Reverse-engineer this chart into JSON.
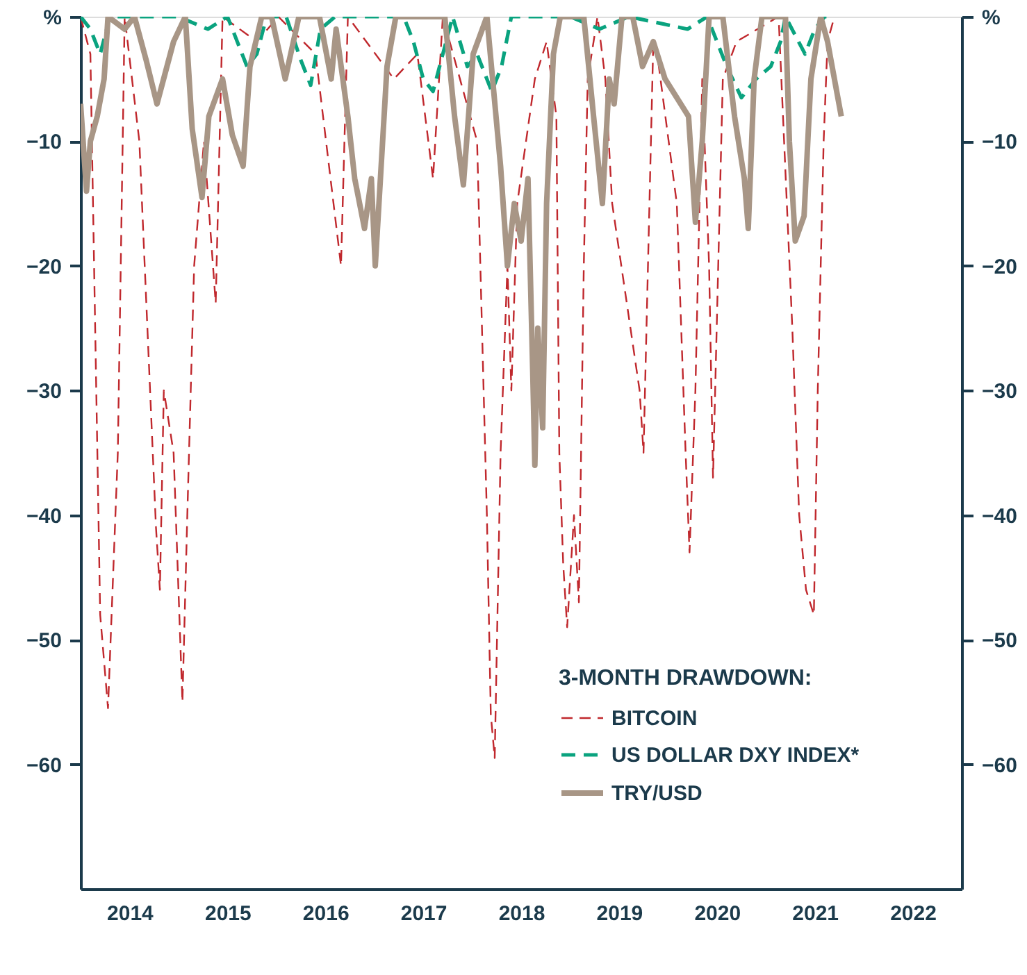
{
  "chart_data": {
    "type": "line",
    "legend_title": "3-MONTH DRAWDOWN:",
    "legend": "bottom right",
    "grid": false,
    "marker": "none",
    "xlim": [
      2014.0,
      2023.0
    ],
    "xticks": [
      {
        "value": 2014.5,
        "label": "2014"
      },
      {
        "value": 2015.5,
        "label": "2015"
      },
      {
        "value": 2016.5,
        "label": "2016"
      },
      {
        "value": 2017.5,
        "label": "2017"
      },
      {
        "value": 2018.5,
        "label": "2018"
      },
      {
        "value": 2019.5,
        "label": "2019"
      },
      {
        "value": 2020.5,
        "label": "2020"
      },
      {
        "value": 2021.5,
        "label": "2021"
      },
      {
        "value": 2022.5,
        "label": "2022"
      }
    ],
    "ylim": [
      -70,
      0
    ],
    "yticks": [
      {
        "value": 0,
        "label": "%"
      },
      -10,
      -20,
      -30,
      -40,
      -50,
      -60
    ],
    "y2lim": [
      -70,
      0
    ],
    "y2ticks": [
      {
        "value": 0,
        "label": "%"
      },
      -10,
      -20,
      -30,
      -40,
      -50,
      -60
    ],
    "series": [
      {
        "name": "BITCOIN",
        "color": "#c0282d",
        "line_style": "dashed",
        "x": [
          2014.0,
          2014.1,
          2014.2,
          2014.28,
          2014.38,
          2014.45,
          2014.6,
          2014.77,
          2014.81,
          2014.85,
          2014.95,
          2015.04,
          2015.09,
          2015.16,
          2015.26,
          2015.38,
          2015.45,
          2015.8,
          2016.02,
          2016.4,
          2016.66,
          2016.73,
          2017.2,
          2017.44,
          2017.6,
          2017.7,
          2018.05,
          2018.15,
          2018.19,
          2018.23,
          2018.29,
          2018.36,
          2018.4,
          2018.46,
          2018.55,
          2018.64,
          2018.76,
          2018.86,
          2018.89,
          2018.93,
          2018.97,
          2019.04,
          2019.09,
          2019.14,
          2019.18,
          2019.28,
          2019.36,
          2019.43,
          2019.71,
          2019.75,
          2019.85,
          2019.89,
          2020.09,
          2020.18,
          2020.22,
          2020.28,
          2020.35,
          2020.42,
          2020.46,
          2020.56,
          2020.7,
          2021.13,
          2021.27,
          2021.34,
          2021.41,
          2021.49,
          2021.53,
          2021.59,
          2021.63,
          2021.7
        ],
        "values": [
          0,
          -3,
          -48,
          -55.5,
          -35,
          0,
          -10,
          -41,
          -46,
          -30,
          -35,
          -55,
          -40,
          -20,
          -10,
          -23,
          0,
          -2,
          0,
          -3,
          -20,
          0,
          -5,
          -3,
          -13,
          0,
          -10,
          -40,
          -56,
          -59.5,
          -35,
          -20,
          -30,
          -15,
          -10,
          -5,
          -2,
          -8,
          -35,
          -44,
          -49,
          -40,
          -47,
          -20,
          -5,
          0,
          -5,
          -15,
          -30,
          -35,
          -2,
          -3,
          -15,
          -35,
          -43,
          -30,
          -5,
          -20,
          -37,
          -5,
          -2,
          0,
          -25,
          -40,
          -46,
          -48,
          -30,
          -10,
          -2,
          0
        ]
      },
      {
        "name": "US DOLLAR DXY INDEX*",
        "color": "#0aa37f",
        "line_style": "dashed",
        "x": [
          2014.0,
          2014.1,
          2014.2,
          2014.3,
          2015.0,
          2015.3,
          2015.5,
          2015.6,
          2015.7,
          2015.8,
          2015.9,
          2016.1,
          2016.25,
          2016.35,
          2016.45,
          2016.6,
          2017.3,
          2017.4,
          2017.5,
          2017.6,
          2017.7,
          2017.8,
          2017.95,
          2018.05,
          2018.2,
          2018.3,
          2018.4,
          2019.0,
          2019.3,
          2019.6,
          2020.2,
          2020.4,
          2020.5,
          2020.6,
          2020.75,
          2020.9,
          2021.05,
          2021.15,
          2021.2,
          2021.4,
          2021.5,
          2021.6,
          2021.7
        ],
        "values": [
          0,
          -1,
          -3,
          0,
          0,
          -1,
          0,
          -2,
          -4,
          -3,
          0,
          0,
          -3.5,
          -5.5,
          -1,
          0,
          0,
          -2,
          -5,
          -6,
          -3,
          0,
          -4,
          -3,
          -6,
          -4,
          0,
          0,
          -1,
          0,
          -1,
          0,
          -2,
          -4,
          -6.5,
          -5,
          -4,
          -2,
          0,
          -3,
          -1,
          0,
          0
        ]
      },
      {
        "name": "TRY/USD",
        "color": "#a89686",
        "line_style": "solid",
        "x": [
          2014.0,
          2014.06,
          2014.1,
          2014.17,
          2014.24,
          2014.28,
          2014.45,
          2014.55,
          2014.67,
          2014.78,
          2014.95,
          2015.07,
          2015.14,
          2015.24,
          2015.31,
          2015.45,
          2015.55,
          2015.66,
          2015.73,
          2015.85,
          2015.95,
          2016.09,
          2016.23,
          2016.44,
          2016.56,
          2016.61,
          2016.73,
          2016.8,
          2016.9,
          2016.97,
          2017.01,
          2017.13,
          2017.22,
          2017.72,
          2017.82,
          2017.91,
          2018.01,
          2018.15,
          2018.29,
          2018.36,
          2018.43,
          2018.5,
          2018.57,
          2018.62,
          2018.64,
          2018.67,
          2018.72,
          2018.76,
          2018.83,
          2018.9,
          2019.14,
          2019.24,
          2019.33,
          2019.4,
          2019.45,
          2019.53,
          2019.64,
          2019.74,
          2019.85,
          2019.97,
          2020.21,
          2020.28,
          2020.35,
          2020.42,
          2020.56,
          2020.68,
          2020.78,
          2020.82,
          2020.88,
          2020.96,
          2021.2,
          2021.24,
          2021.3,
          2021.39,
          2021.46,
          2021.56,
          2021.63,
          2021.77
        ],
        "values": [
          -7,
          -14,
          -10,
          -8,
          -5,
          0,
          -1,
          0,
          -3.5,
          -7,
          -2,
          0,
          -9,
          -14.5,
          -8,
          -5,
          -9.5,
          -12,
          -4,
          0,
          0,
          -5,
          0,
          0,
          -5,
          -1,
          -8,
          -13,
          -17,
          -13,
          -20,
          -4,
          0,
          0,
          -8,
          -13.5,
          -3,
          0,
          -12,
          -20,
          -15,
          -18,
          -13,
          -29,
          -36,
          -25,
          -33,
          -15,
          -3,
          0,
          0,
          -8,
          -15,
          -5,
          -7,
          0,
          0,
          -4,
          -2,
          -5,
          -8,
          -16.5,
          -10,
          0,
          0,
          -8,
          -13,
          -17,
          -5,
          0,
          0,
          -10,
          -18,
          -16,
          -5,
          0,
          -2,
          -8
        ]
      }
    ]
  }
}
